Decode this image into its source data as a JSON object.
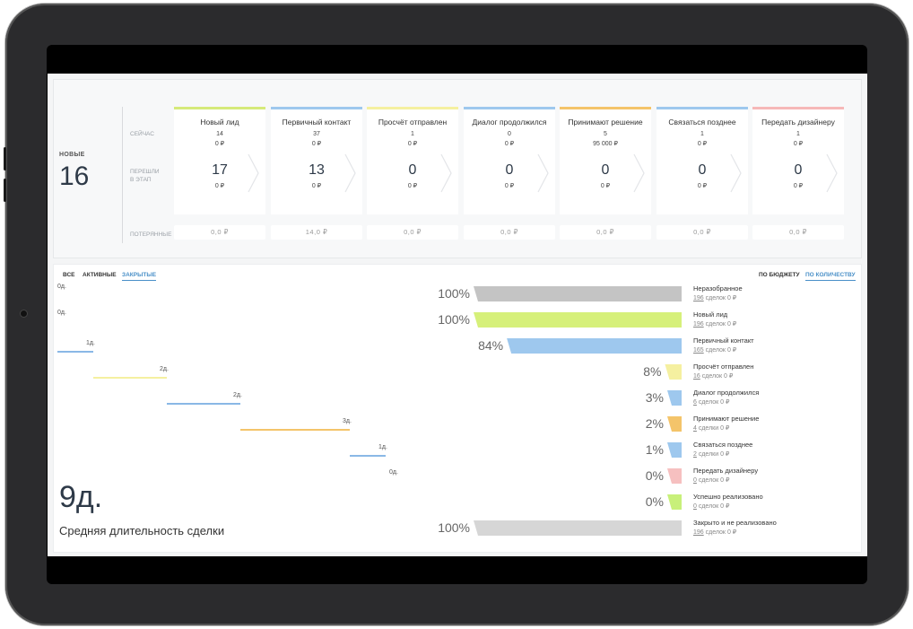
{
  "pipeline": {
    "new": {
      "label": "НОВЫЕ",
      "count": "16"
    },
    "row_labels": {
      "now": "СЕЙЧАС",
      "moved_1": "ПЕРЕШЛИ",
      "moved_2": "В ЭТАП",
      "lost": "ПОТЕРЯННЫЕ"
    },
    "stages": [
      {
        "name": "Новый лид",
        "color": "#d6ea7a",
        "now_count": "14",
        "now_sum": "0 ₽",
        "moved_count": "17",
        "moved_sum": "0 ₽",
        "lost": "0,0 ₽"
      },
      {
        "name": "Первичный контакт",
        "color": "#9ec8ee",
        "now_count": "37",
        "now_sum": "0 ₽",
        "moved_count": "13",
        "moved_sum": "0 ₽",
        "lost": "14,0 ₽"
      },
      {
        "name": "Просчёт отправлен",
        "color": "#f5f0a0",
        "now_count": "1",
        "now_sum": "0 ₽",
        "moved_count": "0",
        "moved_sum": "0 ₽",
        "lost": "0,0 ₽"
      },
      {
        "name": "Диалог продолжился",
        "color": "#9ec8ee",
        "now_count": "0",
        "now_sum": "0 ₽",
        "moved_count": "0",
        "moved_sum": "0 ₽",
        "lost": "0,0 ₽"
      },
      {
        "name": "Принимают решение",
        "color": "#f4c46a",
        "now_count": "5",
        "now_sum": "95 000 ₽",
        "moved_count": "0",
        "moved_sum": "0 ₽",
        "lost": "0,0 ₽"
      },
      {
        "name": "Связаться позднее",
        "color": "#9ec8ee",
        "now_count": "1",
        "now_sum": "0 ₽",
        "moved_count": "0",
        "moved_sum": "0 ₽",
        "lost": "0,0 ₽"
      },
      {
        "name": "Передать дизайнеру",
        "color": "#f6b8b8",
        "now_count": "1",
        "now_sum": "0 ₽",
        "moved_count": "0",
        "moved_sum": "0 ₽",
        "lost": "0,0 ₽"
      }
    ]
  },
  "tabs": {
    "all": "ВСЕ",
    "active": "АКТИВНЫЕ",
    "closed": "ЗАКРЫТЫЕ"
  },
  "sort_tabs": {
    "budget": "ПО БЮДЖЕТУ",
    "quantity": "ПО КОЛИЧЕСТВУ"
  },
  "durations": [
    {
      "label": "0д.",
      "color": "#cfcfcf"
    },
    {
      "label": "0д.",
      "color": "#cfcfcf"
    },
    {
      "label": "1д.",
      "color": "#8ab8e6"
    },
    {
      "label": "2д.",
      "color": "#f5f0a0"
    },
    {
      "label": "2д.",
      "color": "#8ab8e6"
    },
    {
      "label": "3д.",
      "color": "#f4c46a"
    },
    {
      "label": "1д.",
      "color": "#8ab8e6"
    },
    {
      "label": "0д.",
      "color": "#cfcfcf"
    }
  ],
  "average": {
    "value": "9д.",
    "caption": "Средняя длительность сделки"
  },
  "funnel": [
    {
      "pct": "100%",
      "value": 100,
      "color": "#c4c4c4",
      "name": "Неразобранное",
      "count": "196",
      "tail": " сделок 0 ₽"
    },
    {
      "pct": "100%",
      "value": 100,
      "color": "#d6f07a",
      "name": "Новый лид",
      "count": "196",
      "tail": " сделок 0 ₽"
    },
    {
      "pct": "84%",
      "value": 84,
      "color": "#9ec8ee",
      "name": "Первичный контакт",
      "count": "165",
      "tail": " сделок 0 ₽"
    },
    {
      "pct": "8%",
      "value": 8,
      "color": "#f5f0a0",
      "name": "Просчёт отправлен",
      "count": "16",
      "tail": " сделок 0 ₽"
    },
    {
      "pct": "3%",
      "value": 3,
      "color": "#9ec8ee",
      "name": "Диалог продолжился",
      "count": "6",
      "tail": " сделок 0 ₽"
    },
    {
      "pct": "2%",
      "value": 2,
      "color": "#f4c46a",
      "name": "Принимают решение",
      "count": "4",
      "tail": " сделки 0 ₽"
    },
    {
      "pct": "1%",
      "value": 1,
      "color": "#9ec8ee",
      "name": "Связаться позднее",
      "count": "2",
      "tail": " сделки 0 ₽"
    },
    {
      "pct": "0%",
      "value": 0,
      "color": "#f6c0c0",
      "name": "Передать дизайнеру",
      "count": "0",
      "tail": " сделок 0 ₽"
    },
    {
      "pct": "0%",
      "value": 0,
      "color": "#c8f07a",
      "name": "Успешно реализовано",
      "count": "0",
      "tail": " сделок 0 ₽"
    },
    {
      "pct": "100%",
      "value": 100,
      "color": "#d6d6d6",
      "name": "Закрыто и не реализовано",
      "count": "196",
      "tail": " сделок 0 ₽"
    }
  ]
}
